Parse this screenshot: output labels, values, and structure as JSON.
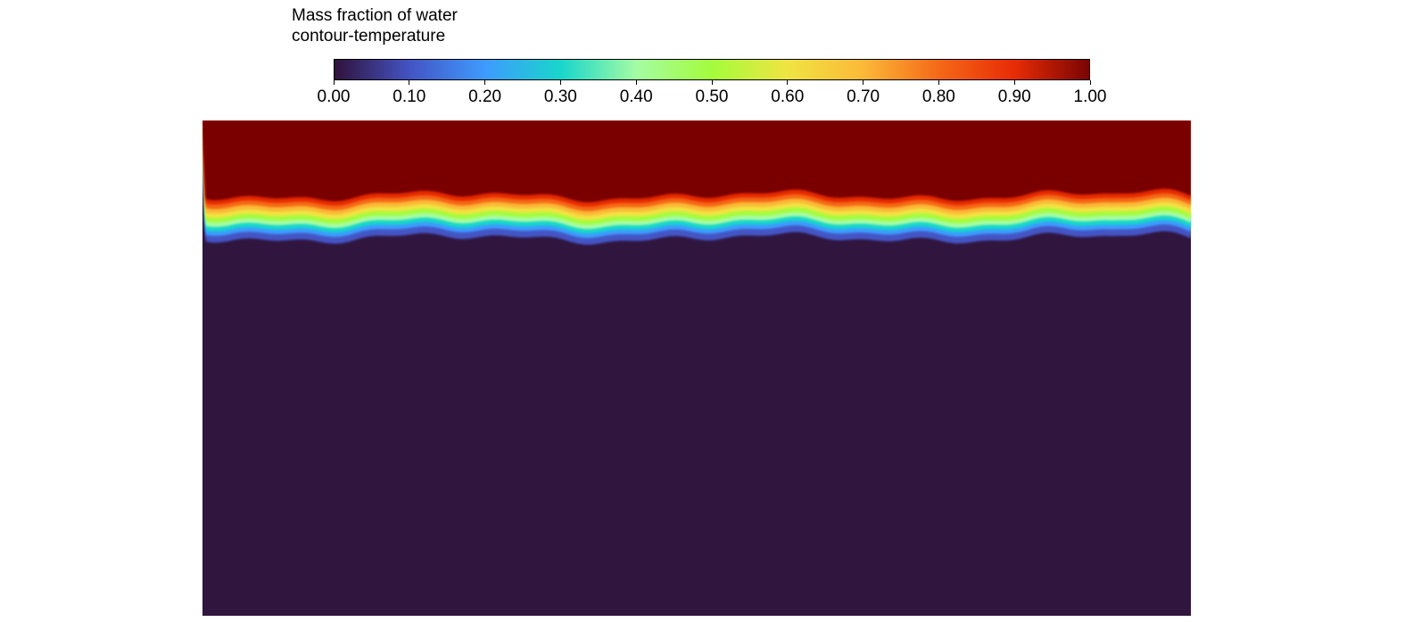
{
  "legend": {
    "title_line1": "Mass fraction of water",
    "title_line2": "contour-temperature"
  },
  "chart_data": {
    "type": "heatmap",
    "title": "Mass fraction of water",
    "subtitle": "contour-temperature",
    "colorbar": {
      "min": 0.0,
      "max": 1.0,
      "tick_values": [
        0.0,
        0.1,
        0.2,
        0.3,
        0.4,
        0.5,
        0.6,
        0.7,
        0.8,
        0.9,
        1.0
      ],
      "tick_labels": [
        "0.00",
        "0.10",
        "0.20",
        "0.30",
        "0.40",
        "0.50",
        "0.60",
        "0.70",
        "0.80",
        "0.90",
        "1.00"
      ],
      "placement": "top",
      "colors": [
        {
          "value": 0.0,
          "color": "#30123b"
        },
        {
          "value": 0.1,
          "color": "#4454c4"
        },
        {
          "value": 0.2,
          "color": "#3e9bfe"
        },
        {
          "value": 0.3,
          "color": "#18d6cb"
        },
        {
          "value": 0.4,
          "color": "#a4fca3"
        },
        {
          "value": 0.5,
          "color": "#a4fc3c"
        },
        {
          "value": 0.6,
          "color": "#f0e442"
        },
        {
          "value": 0.7,
          "color": "#fbb938"
        },
        {
          "value": 0.8,
          "color": "#f56918"
        },
        {
          "value": 0.9,
          "color": "#e82c06"
        },
        {
          "value": 1.0,
          "color": "#7a0403"
        }
      ]
    },
    "field": {
      "upper_region_value": 1.0,
      "lower_region_value": 0.0,
      "interface": "wavy horizontal transition band near the top of the domain, from 1.00 above to 0.00 below"
    }
  }
}
